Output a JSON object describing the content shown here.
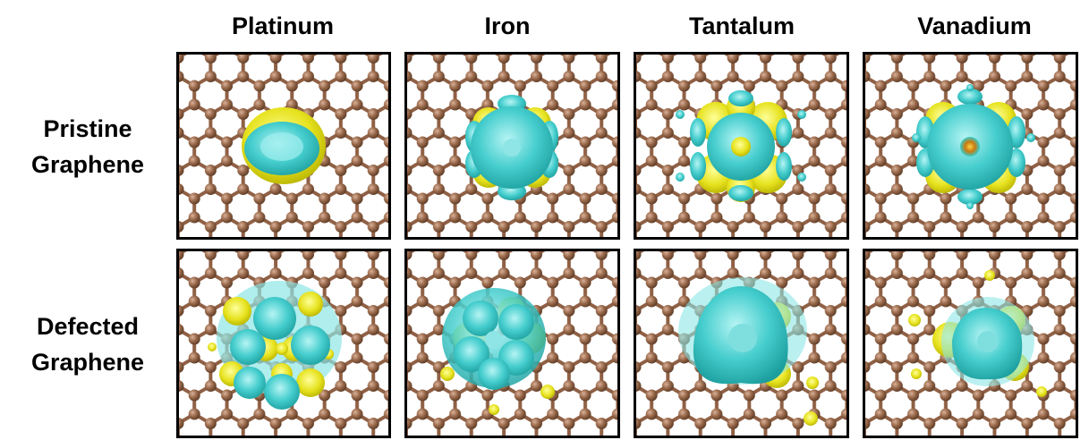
{
  "columns": [
    "Platinum",
    "Iron",
    "Tantalum",
    "Vanadium"
  ],
  "rows": [
    [
      "Pristine",
      "Graphene"
    ],
    [
      "Defected",
      "Graphene"
    ]
  ]
}
